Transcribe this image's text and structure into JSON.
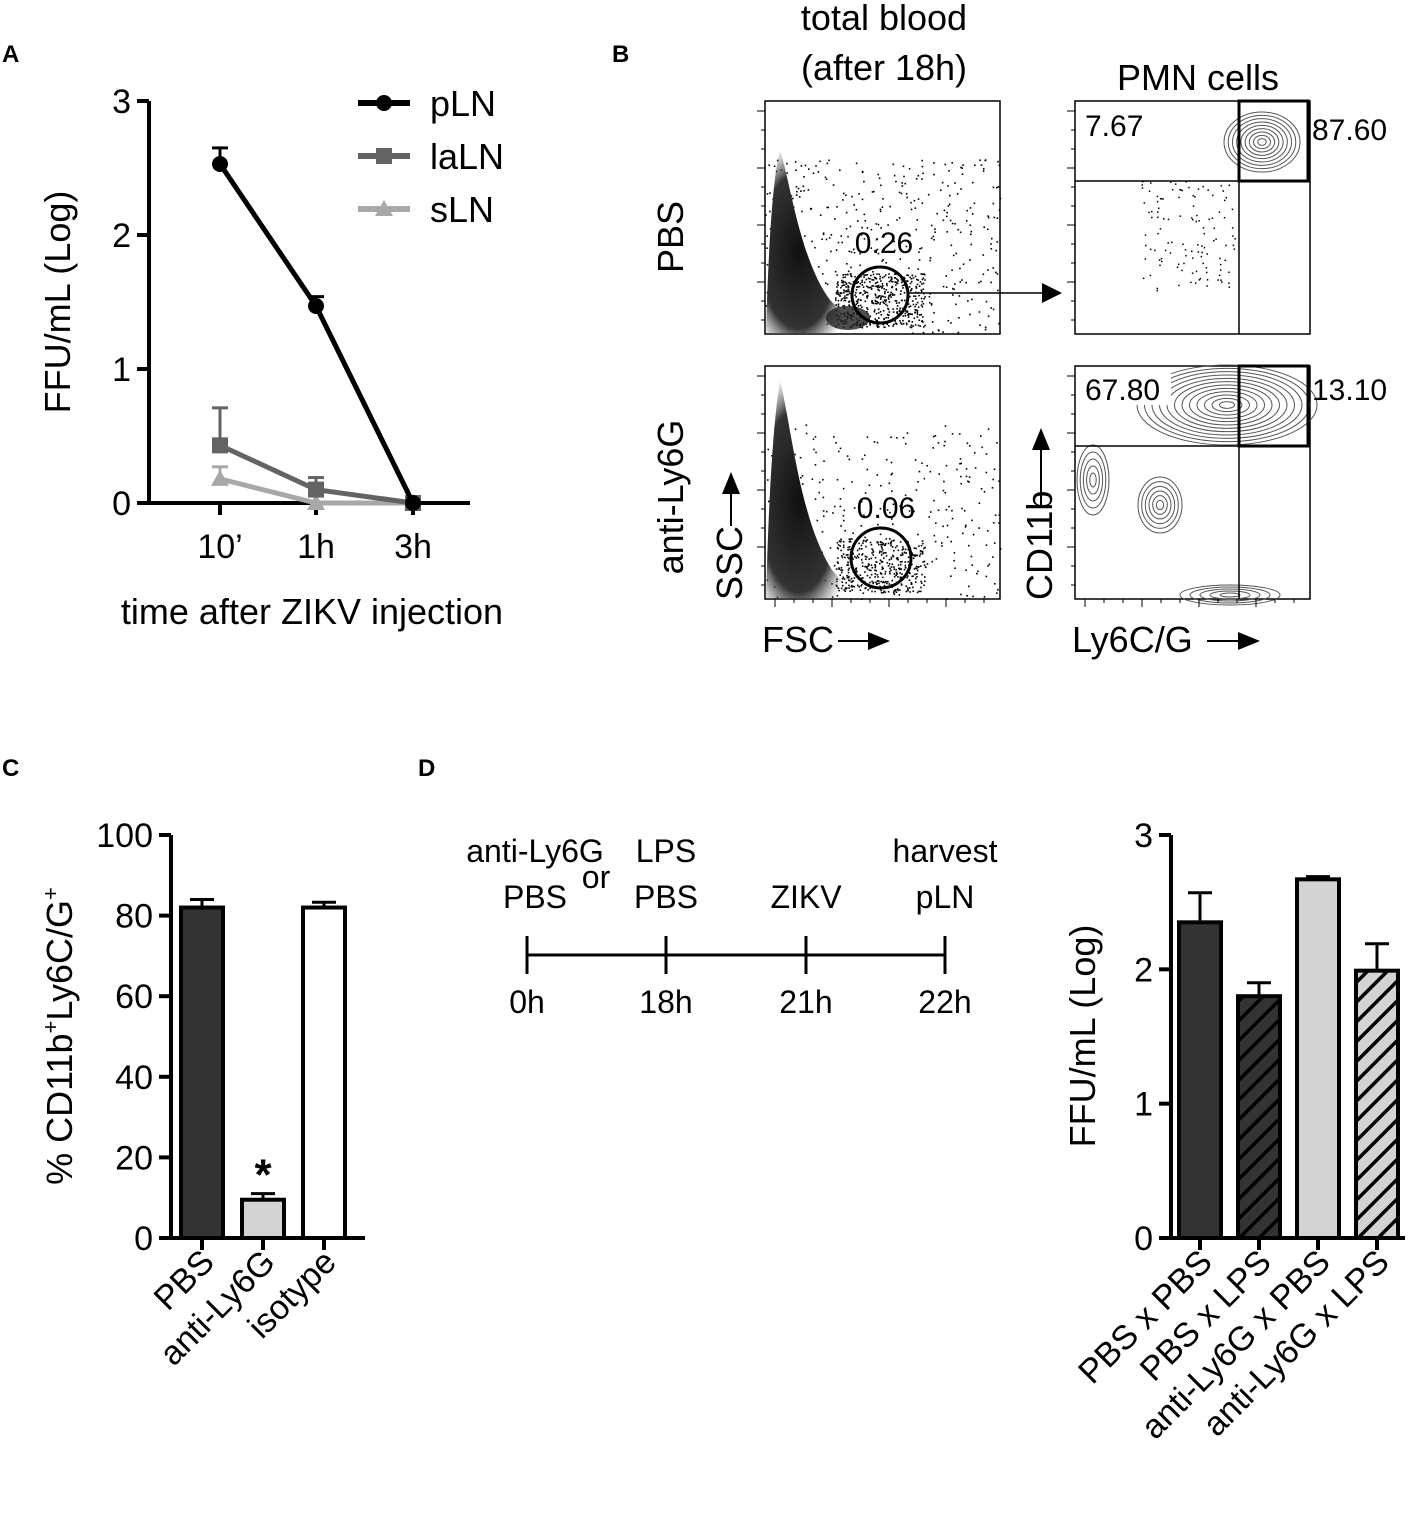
{
  "panels": {
    "a": {
      "letter": "A"
    },
    "b": {
      "letter": "B"
    },
    "c": {
      "letter": "C"
    },
    "d": {
      "letter": "D"
    }
  },
  "chart_data": [
    {
      "id": "A",
      "type": "line",
      "title": "",
      "xlabel": "time after ZIKV injection",
      "ylabel": "FFU/mL (Log)",
      "ylim": [
        0,
        3
      ],
      "yticks": [
        "0",
        "1",
        "2",
        "3"
      ],
      "categories": [
        "10’",
        "1h",
        "3h"
      ],
      "legend_position": "top-right",
      "series": [
        {
          "name": "pLN",
          "color": "#000000",
          "marker": "circle",
          "values": [
            2.53,
            1.47,
            0.0
          ],
          "errors": [
            0.12,
            0.07,
            0.0
          ]
        },
        {
          "name": "laLN",
          "color": "#636363",
          "marker": "square",
          "values": [
            0.43,
            0.1,
            0.0
          ],
          "errors": [
            0.28,
            0.09,
            0.0
          ]
        },
        {
          "name": "sLN",
          "color": "#a8a8a8",
          "marker": "triangle",
          "values": [
            0.18,
            0.0,
            0.0
          ],
          "errors": [
            0.09,
            0.0,
            0.0
          ]
        }
      ]
    },
    {
      "id": "B",
      "type": "scatter",
      "col_titles": [
        "total blood\n(after 18h)",
        "PMN cells"
      ],
      "row_labels": [
        "PBS",
        "anti-Ly6G"
      ],
      "x_labels": [
        "FSC",
        "Ly6C/G"
      ],
      "y_labels": [
        "SSC",
        "CD11b"
      ],
      "gates": {
        "PBS": {
          "pmn_gate": "0.26",
          "upper_left": "7.67",
          "upper_right": "87.60"
        },
        "anti-Ly6G": {
          "pmn_gate": "0.06",
          "upper_left": "67.80",
          "upper_right": "13.10"
        }
      }
    },
    {
      "id": "C",
      "type": "bar",
      "title": "",
      "xlabel": "",
      "ylabel_prefix": "% CD11b",
      "ylabel_sup1": "+",
      "ylabel_mid": "Ly6C/G",
      "ylabel_sup2": "+",
      "ylim": [
        0,
        100
      ],
      "yticks": [
        "0",
        "20",
        "40",
        "60",
        "80",
        "100"
      ],
      "categories": [
        "PBS",
        "anti-Ly6G",
        "isotype"
      ],
      "values": [
        82,
        9.5,
        82
      ],
      "errors": [
        2.0,
        1.5,
        1.3
      ],
      "colors": [
        "#333333",
        "#d3d3d3",
        "#ffffff"
      ],
      "annotations": [
        {
          "category": "anti-Ly6G",
          "text": "*"
        }
      ]
    },
    {
      "id": "D",
      "type": "bar",
      "title": "",
      "xlabel": "",
      "ylabel": "FFU/mL (Log)",
      "ylim": [
        0,
        3
      ],
      "yticks": [
        "0",
        "1",
        "2",
        "3"
      ],
      "categories": [
        "PBS x PBS",
        "PBS x LPS",
        "anti-Ly6G x PBS",
        "anti-Ly6G x LPS"
      ],
      "values": [
        2.35,
        1.8,
        2.67,
        1.99
      ],
      "errors": [
        0.22,
        0.1,
        0.02,
        0.2
      ],
      "colors": [
        "#333333",
        "#333333",
        "#d3d3d3",
        "#d3d3d3"
      ],
      "hatched": [
        false,
        true,
        false,
        true
      ]
    }
  ],
  "timeline": {
    "points": [
      "0h",
      "18h",
      "21h",
      "22h"
    ],
    "events": [
      {
        "lines": [
          "anti-Ly6G",
          "PBS"
        ]
      },
      {
        "lines": [
          "LPS",
          "PBS"
        ]
      },
      {
        "lines": [
          "ZIKV"
        ]
      },
      {
        "lines": [
          "harvest",
          "pLN"
        ]
      }
    ],
    "or_text": "or"
  }
}
